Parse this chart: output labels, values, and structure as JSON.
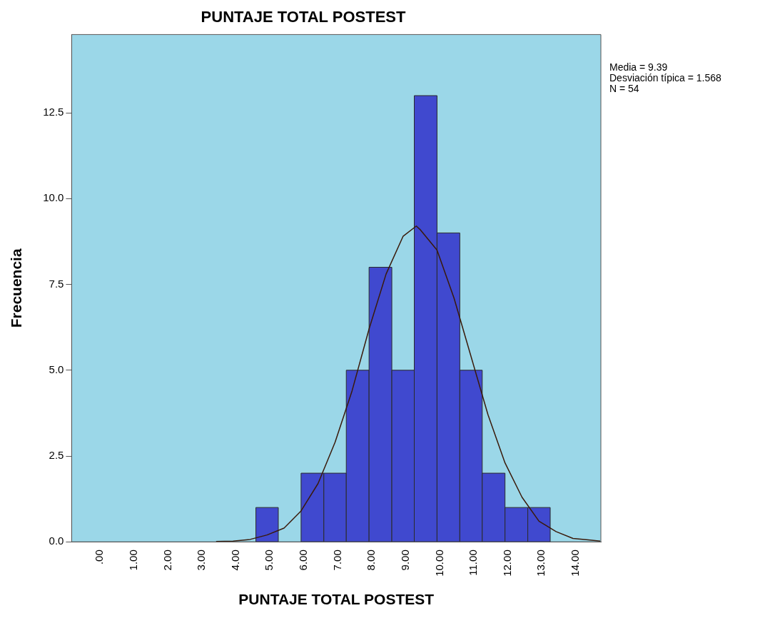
{
  "chart_data": {
    "type": "histogram",
    "title": "PUNTAJE TOTAL POSTEST",
    "xlabel": "PUNTAJE TOTAL POSTEST",
    "ylabel": "Frecuencia",
    "bins": [
      4.67,
      5.33,
      6,
      6.67,
      7.33,
      8,
      8.67,
      9.33,
      10,
      10.67,
      11.33,
      12,
      12.67,
      13.33
    ],
    "values": [
      1,
      0,
      2,
      2,
      5,
      8,
      5,
      13,
      9,
      5,
      2,
      1,
      1
    ],
    "color": "#4049cf",
    "series": [
      {
        "type": "line",
        "color": "#3a1a0a",
        "x": [
          3.5,
          4,
          4.5,
          5,
          5.5,
          6,
          6.5,
          7,
          7.5,
          8,
          8.5,
          9,
          9.39,
          9.5,
          10,
          10.5,
          11,
          11.5,
          12,
          12.5,
          13,
          13.5,
          14,
          14.5,
          14.8
        ],
        "values": [
          0.01,
          0.02,
          0.07,
          0.2,
          0.4,
          0.9,
          1.7,
          2.9,
          4.4,
          6.2,
          7.8,
          8.9,
          9.2,
          9.1,
          8.5,
          7.1,
          5.4,
          3.7,
          2.3,
          1.3,
          0.6,
          0.3,
          0.1,
          0.05,
          0.02
        ]
      }
    ],
    "xlim": [
      -0.75,
      14.82
    ],
    "ylim": [
      0,
      14.78
    ],
    "xticks": [
      {
        "value": 0,
        "label": ".00"
      },
      {
        "value": 1,
        "label": "1.00"
      },
      {
        "value": 2,
        "label": "2.00"
      },
      {
        "value": 3,
        "label": "3.00"
      },
      {
        "value": 4,
        "label": "4.00"
      },
      {
        "value": 5,
        "label": "5.00"
      },
      {
        "value": 6,
        "label": "6.00"
      },
      {
        "value": 7,
        "label": "7.00"
      },
      {
        "value": 8,
        "label": "8.00"
      },
      {
        "value": 9,
        "label": "9.00"
      },
      {
        "value": 10,
        "label": "10.00"
      },
      {
        "value": 11,
        "label": "11.00"
      },
      {
        "value": 12,
        "label": "12.00"
      },
      {
        "value": 13,
        "label": "13.00"
      },
      {
        "value": 14,
        "label": "14.00"
      }
    ],
    "yticks": [
      {
        "value": 0,
        "label": "0.0"
      },
      {
        "value": 2.5,
        "label": "2.5"
      },
      {
        "value": 5,
        "label": "5.0"
      },
      {
        "value": 7.5,
        "label": "7.5"
      },
      {
        "value": 10,
        "label": "10.0"
      },
      {
        "value": 12.5,
        "label": "12.5"
      }
    ],
    "annotations": [
      "Media = 9.39",
      "Desviación típica = 1.568",
      "N = 54"
    ],
    "grid": false,
    "legend": false
  }
}
